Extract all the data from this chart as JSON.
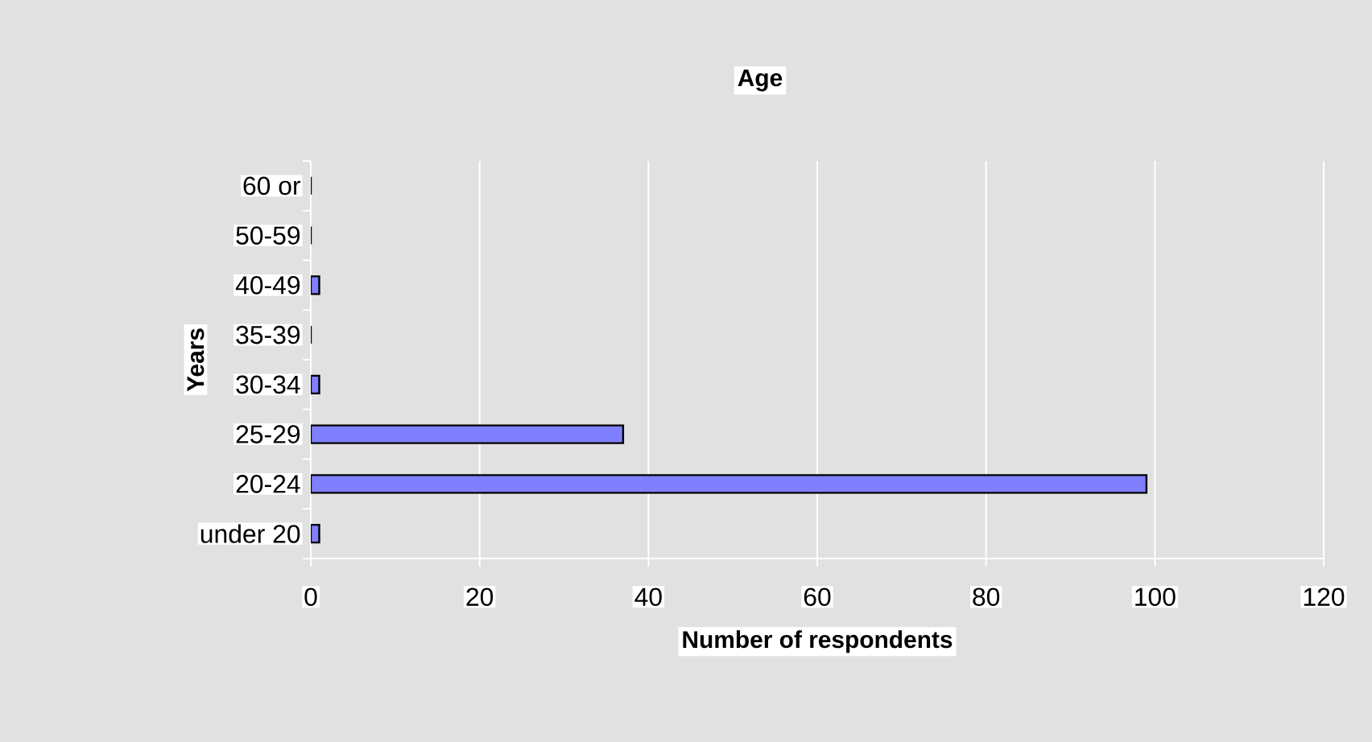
{
  "chart_data": {
    "type": "bar",
    "orientation": "horizontal",
    "title": "Age",
    "xlabel": "Number of respondents",
    "ylabel": "Years",
    "categories": [
      "60 or",
      "50-59",
      "40-49",
      "35-39",
      "30-34",
      "25-29",
      "20-24",
      "under 20"
    ],
    "values": [
      0,
      0,
      1,
      0,
      1,
      37,
      99,
      1
    ],
    "color": "#8080ff",
    "xlim": [
      0,
      120
    ],
    "xticks": [
      0,
      20,
      40,
      60,
      80,
      100,
      120
    ],
    "grid": "x"
  }
}
